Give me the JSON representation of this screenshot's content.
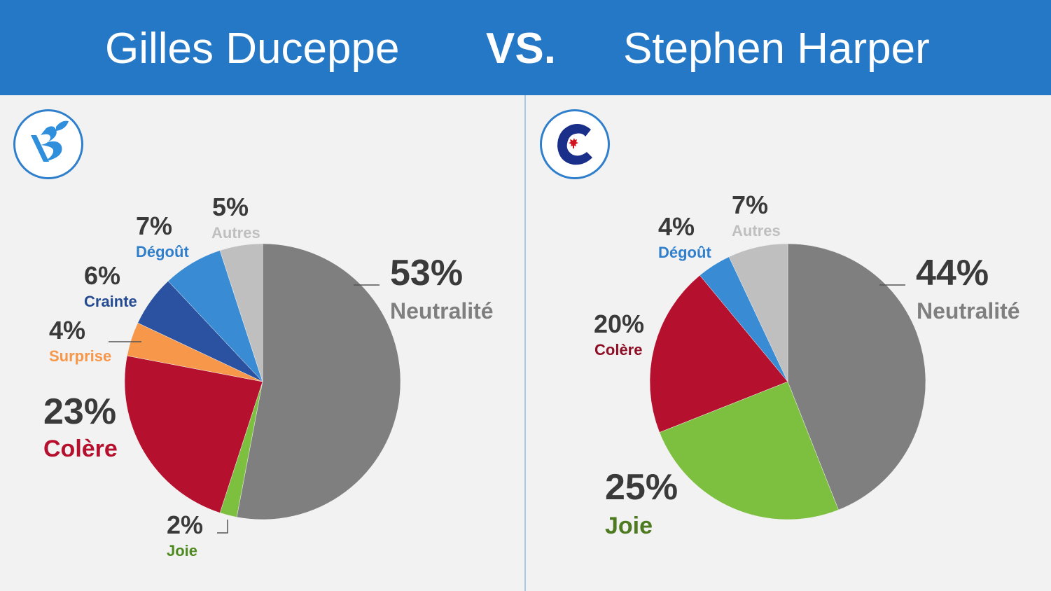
{
  "header": {
    "left_name": "Gilles Duceppe",
    "vs": "VS.",
    "right_name": "Stephen Harper",
    "background": "#2478c5"
  },
  "logos": {
    "left": "bloc-quebecois-logo",
    "right": "conservative-party-logo"
  },
  "chart_data": [
    {
      "type": "pie",
      "title": "",
      "slices": [
        {
          "name": "Neutralité",
          "value": 53,
          "label": "53%",
          "color": "#7f7f7f",
          "label_color": "#7f7f7f"
        },
        {
          "name": "Joie",
          "value": 2,
          "label": "2%",
          "color": "#7dbf3f",
          "label_color": "#4e8a1f"
        },
        {
          "name": "Colère",
          "value": 23,
          "label": "23%",
          "color": "#b5112e",
          "label_color": "#b5112e"
        },
        {
          "name": "Surprise",
          "value": 4,
          "label": "4%",
          "color": "#f7974a",
          "label_color": "#f7974a"
        },
        {
          "name": "Crainte",
          "value": 6,
          "label": "6%",
          "color": "#2a52a0",
          "label_color": "#244a91"
        },
        {
          "name": "Dégoût",
          "value": 7,
          "label": "7%",
          "color": "#398bd4",
          "label_color": "#2f7fcc"
        },
        {
          "name": "Autres",
          "value": 5,
          "label": "5%",
          "color": "#bfbfbf",
          "label_color": "#bfbfbf"
        }
      ]
    },
    {
      "type": "pie",
      "title": "",
      "slices": [
        {
          "name": "Neutralité",
          "value": 44,
          "label": "44%",
          "color": "#7f7f7f",
          "label_color": "#7f7f7f"
        },
        {
          "name": "Joie",
          "value": 25,
          "label": "25%",
          "color": "#7dbf3f",
          "label_color": "#4e7a22"
        },
        {
          "name": "Colère",
          "value": 20,
          "label": "20%",
          "color": "#b5112e",
          "label_color": "#8e0e25"
        },
        {
          "name": "Dégoût",
          "value": 4,
          "label": "4%",
          "color": "#398bd4",
          "label_color": "#2f7fcc"
        },
        {
          "name": "Autres",
          "value": 7,
          "label": "7%",
          "color": "#bfbfbf",
          "label_color": "#bfbfbf"
        }
      ]
    }
  ]
}
